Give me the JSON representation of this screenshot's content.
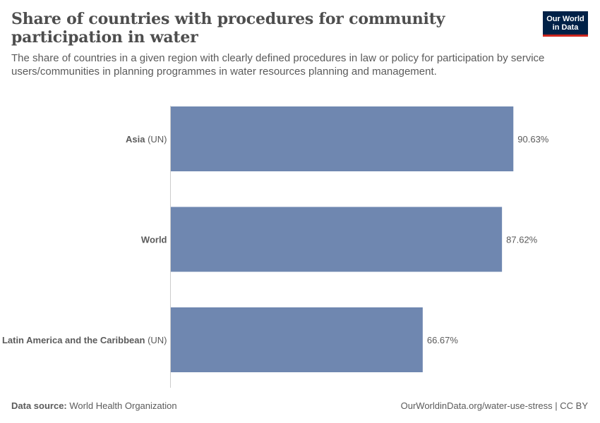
{
  "header": {
    "title": "Share of countries with procedures for community participation in water",
    "subtitle": "The share of countries in a given region with clearly defined procedures in law or policy for participation by service users/communities in planning programmes in water resources planning and management.",
    "logo_line1": "Our World",
    "logo_line2": "in Data"
  },
  "footer": {
    "source_label": "Data source:",
    "source_value": "World Health Organization",
    "url": "OurWorldinData.org/water-use-stress | CC BY"
  },
  "colors": {
    "bar": "#6f87b0",
    "axis": "#cccccc",
    "logo_bg": "#002147",
    "logo_accent": "#ce261e"
  },
  "chart_data": {
    "type": "bar",
    "orientation": "horizontal",
    "categories": [
      {
        "name": "Asia",
        "suffix": "(UN)"
      },
      {
        "name": "World",
        "suffix": ""
      },
      {
        "name": "Latin America and the Caribbean",
        "suffix": "(UN)"
      }
    ],
    "values": [
      90.63,
      87.62,
      66.67
    ],
    "value_labels": [
      "90.63%",
      "87.62%",
      "66.67%"
    ],
    "xlim": [
      0,
      100
    ],
    "grid": false,
    "unit": "%"
  }
}
